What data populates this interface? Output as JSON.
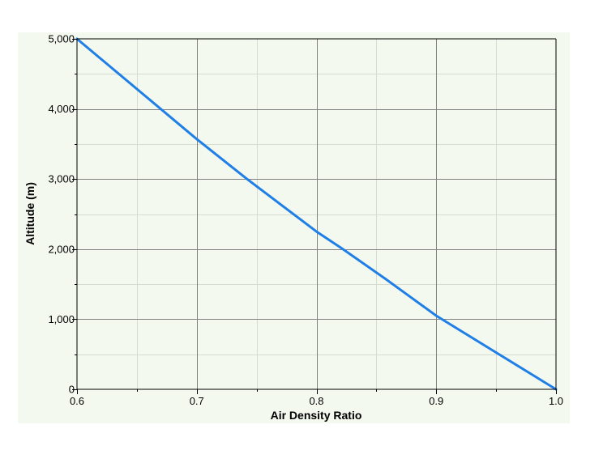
{
  "chart_data": {
    "type": "line",
    "title": "",
    "xlabel": "Air Density Ratio",
    "ylabel": "Altitude (m)",
    "xlim": [
      0.6,
      1.0
    ],
    "ylim": [
      0,
      5000
    ],
    "x_ticks": [
      0.6,
      0.7,
      0.8,
      0.9,
      1.0
    ],
    "x_tick_labels": [
      "0.6",
      "0.7",
      "0.8",
      "0.9",
      "1.0"
    ],
    "y_ticks": [
      0,
      1000,
      2000,
      3000,
      4000,
      5000
    ],
    "y_tick_labels": [
      "0",
      "1,000",
      "2,000",
      "3,000",
      "4,000",
      "5,000"
    ],
    "grid": true,
    "legend": "none",
    "colors": {
      "series": "#1f7fe6",
      "panel": "#f4f9f0"
    },
    "series": [
      {
        "x": [
          0.6,
          0.7,
          0.742,
          0.8,
          0.822,
          0.858,
          0.9,
          1.0
        ],
        "y": [
          5000,
          3570,
          3000,
          2250,
          2000,
          1570,
          1050,
          0
        ]
      }
    ]
  }
}
